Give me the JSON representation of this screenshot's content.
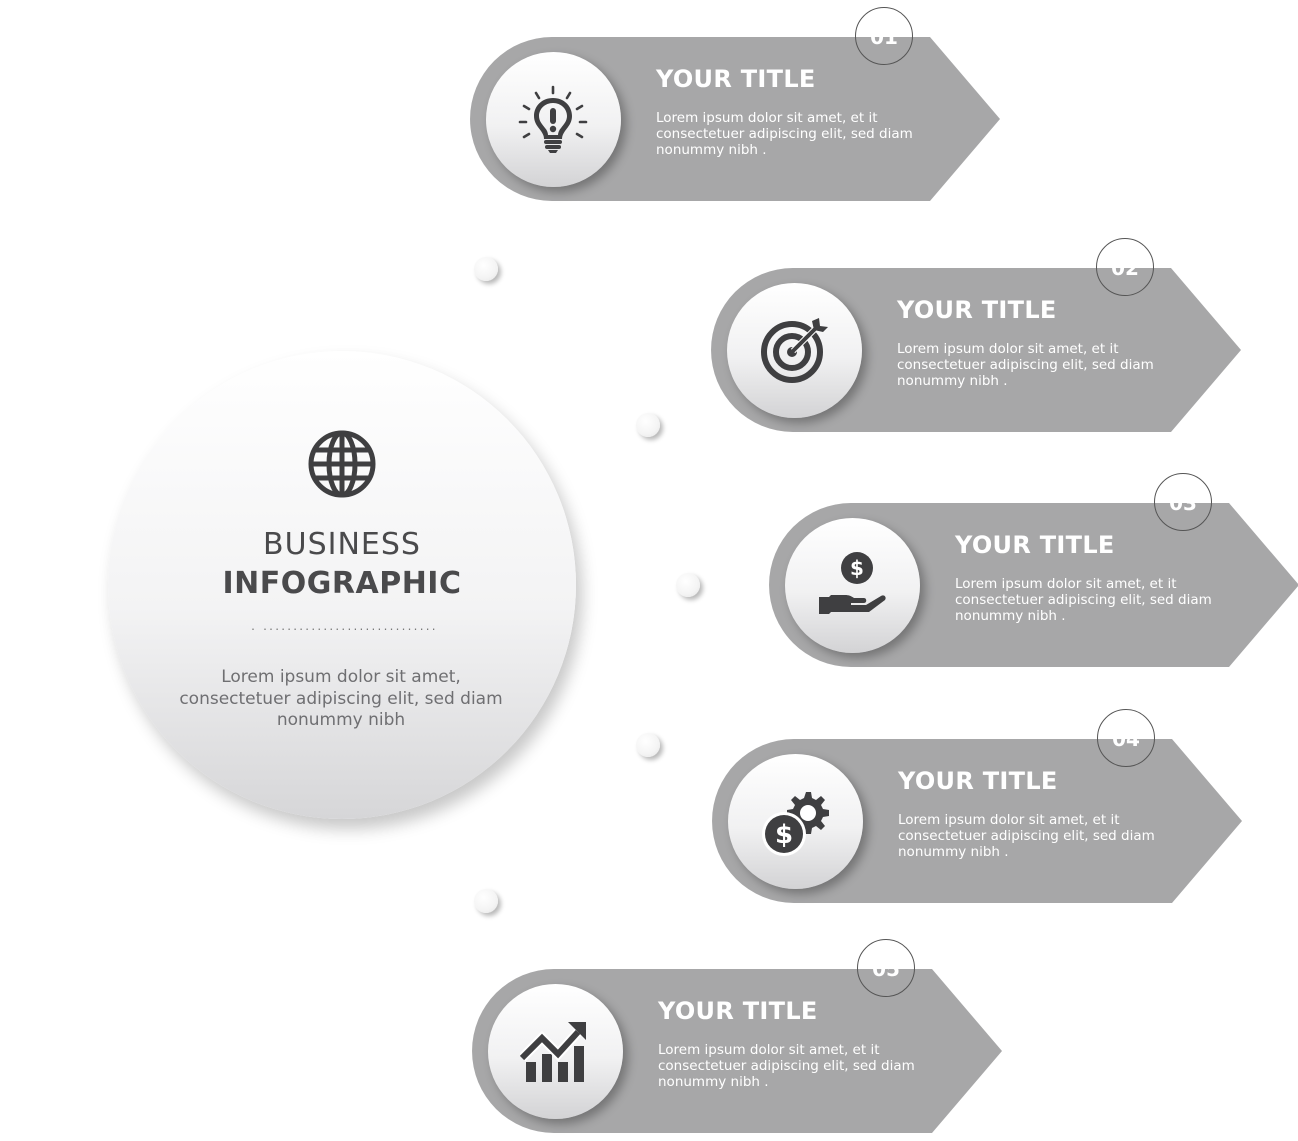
{
  "hub": {
    "icon": "globe-icon",
    "line1": "BUSINESS",
    "line2": "INFOGRAPHIC",
    "dots": ". ........................................... .",
    "body": "Lorem ipsum dolor sit amet, consectetuer adipiscing elit, sed diam nonummy nibh"
  },
  "colors": {
    "banner": "#a7a7a8",
    "icon": "#3f3f41",
    "hub_text": "#4a4a4c",
    "badge_border": "#555555"
  },
  "steps": [
    {
      "number": "01",
      "icon": "lightbulb-icon",
      "title": "YOUR TITLE",
      "text": "Lorem ipsum dolor sit amet, et it consectetuer adipiscing elit, sed diam nonummy nibh ."
    },
    {
      "number": "02",
      "icon": "target-icon",
      "title": "YOUR TITLE",
      "text": "Lorem ipsum dolor sit amet, et it consectetuer adipiscing elit, sed diam nonummy nibh ."
    },
    {
      "number": "03",
      "icon": "money-hand-icon",
      "title": "YOUR TITLE",
      "text": "Lorem ipsum dolor sit amet, et it consectetuer adipiscing elit, sed diam nonummy nibh ."
    },
    {
      "number": "04",
      "icon": "dollar-gear-icon",
      "title": "YOUR TITLE",
      "text": "Lorem ipsum dolor sit amet, et it consectetuer adipiscing elit, sed diam nonummy nibh ."
    },
    {
      "number": "05",
      "icon": "growth-chart-icon",
      "title": "YOUR TITLE",
      "text": "Lorem ipsum dolor sit amet, et it consectetuer adipiscing elit, sed diam nonummy nibh ."
    }
  ]
}
